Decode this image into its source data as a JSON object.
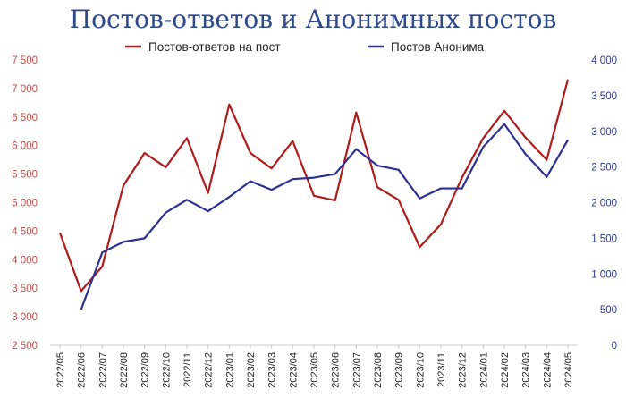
{
  "chart_data": {
    "type": "line",
    "title": "Постов-ответов и Анонимных постов",
    "legend_position": "top",
    "grid": false,
    "categories": [
      "2022/05",
      "2022/06",
      "2022/07",
      "2022/08",
      "2022/09",
      "2022/10",
      "2022/11",
      "2022/12",
      "2023/01",
      "2023/02",
      "2023/03",
      "2023/04",
      "2023/05",
      "2023/06",
      "2023/07",
      "2023/08",
      "2023/09",
      "2023/10",
      "2023/11",
      "2023/12",
      "2024/01",
      "2024/02",
      "2024/03",
      "2024/04",
      "2024/05"
    ],
    "y_left": {
      "ylim": [
        2500,
        7500
      ],
      "ticks": [
        "2 500",
        "3 000",
        "3 500",
        "4 000",
        "4 500",
        "5 000",
        "5 500",
        "6 000",
        "6 500",
        "7 000",
        "7 500"
      ],
      "tick_values": [
        2500,
        3000,
        3500,
        4000,
        4500,
        5000,
        5500,
        6000,
        6500,
        7000,
        7500
      ]
    },
    "y_right": {
      "ylim": [
        0,
        4000
      ],
      "ticks": [
        "0",
        "500",
        "1 000",
        "1 500",
        "2 000",
        "2 500",
        "3 000",
        "3 500",
        "4 000"
      ],
      "tick_values": [
        0,
        500,
        1000,
        1500,
        2000,
        2500,
        3000,
        3500,
        4000
      ]
    },
    "series": [
      {
        "name": "Постов-ответов на пост",
        "axis": "left",
        "color": "#b01c1c",
        "values": [
          4470,
          3450,
          3880,
          5300,
          5870,
          5620,
          6130,
          5170,
          6720,
          5870,
          5600,
          6080,
          5120,
          5040,
          6580,
          5270,
          5050,
          4220,
          4620,
          5440,
          6130,
          6610,
          6140,
          5750,
          7160
        ]
      },
      {
        "name": "Постов Анонима",
        "axis": "right",
        "color": "#2e3192",
        "values": [
          null,
          500,
          1300,
          1450,
          1500,
          1860,
          2040,
          1880,
          2080,
          2300,
          2180,
          2330,
          2350,
          2400,
          2750,
          2520,
          2460,
          2060,
          2200,
          2200,
          2780,
          3100,
          2680,
          2360,
          2880
        ]
      }
    ]
  }
}
